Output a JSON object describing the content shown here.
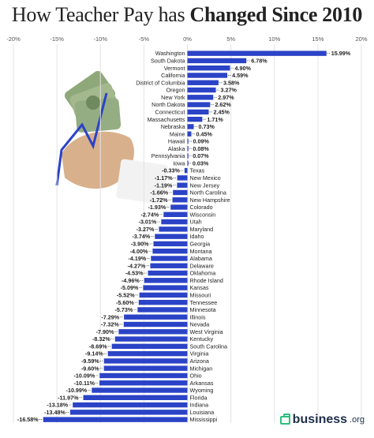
{
  "title_prefix": "How Teacher Pay has ",
  "title_bold": "Changed Since 2010",
  "logo": {
    "name": "business",
    "suffix": ".org",
    "accent": "#2dbf7e"
  },
  "colors": {
    "bar": "#2b43c6",
    "grid": "#e3e3e3",
    "text": "#222222"
  },
  "chart_data": {
    "type": "bar",
    "orientation": "horizontal",
    "title": "How Teacher Pay has Changed Since 2010",
    "xlim": [
      -20,
      20
    ],
    "xticks": [
      -20,
      -15,
      -10,
      -5,
      0,
      5,
      10,
      15,
      20
    ],
    "xtick_labels": [
      "-20%",
      "-15%",
      "-10%",
      "-5%",
      "0%",
      "5%",
      "10%",
      "15%",
      "20%"
    ],
    "categories": [
      "Washington",
      "South Dakota",
      "Vermont",
      "California",
      "District of Columbia",
      "Oregon",
      "New York",
      "North Dakota",
      "Connecticut",
      "Massachusetts",
      "Nebraska",
      "Maine",
      "Hawaii",
      "Alaska",
      "Pennsylvania",
      "Iowa",
      "Texas",
      "New Mexico",
      "New Jersey",
      "North Carolina",
      "New Hampshire",
      "Colorado",
      "Wisconsin",
      "Utah",
      "Maryland",
      "Idaho",
      "Georgia",
      "Montana",
      "Alabama",
      "Delaware",
      "Oklahoma",
      "Rhode Island",
      "Kansas",
      "Missouri",
      "Tennessee",
      "Minnesota",
      "Illinois",
      "Nevada",
      "West Virginia",
      "Kentucky",
      "South Carolina",
      "Virginia",
      "Arizona",
      "Michigan",
      "Ohio",
      "Arkansas",
      "Wyoming",
      "Florida",
      "Indiana",
      "Louisiana",
      "Mississippi"
    ],
    "values": [
      15.99,
      6.78,
      4.9,
      4.59,
      3.58,
      3.27,
      2.97,
      2.62,
      2.45,
      1.71,
      0.73,
      0.45,
      0.09,
      0.08,
      0.07,
      0.03,
      -0.33,
      -1.17,
      -1.19,
      -1.66,
      -1.72,
      -1.93,
      -2.74,
      -3.01,
      -3.27,
      -3.74,
      -3.9,
      -4.0,
      -4.19,
      -4.27,
      -4.53,
      -4.96,
      -5.09,
      -5.52,
      -5.6,
      -5.73,
      -7.29,
      -7.32,
      -7.9,
      -8.32,
      -8.69,
      -9.14,
      -9.59,
      -9.6,
      -10.09,
      -10.11,
      -10.99,
      -11.97,
      -13.18,
      -13.48,
      -16.58
    ],
    "value_labels": [
      "15.99%",
      "6.78%",
      "4.90%",
      "4.59%",
      "3.58%",
      "3.27%",
      "2.97%",
      "2.62%",
      "2.45%",
      "1.71%",
      "0.73%",
      "0.45%",
      "0.09%",
      "0.08%",
      "0.07%",
      "0.03%",
      "-0.33%",
      "-1.17%",
      "-1.19%",
      "-1.66%",
      "-1.72%",
      "-1.93%",
      "-2.74%",
      "-3.01%",
      "-3.27%",
      "-3.74%",
      "-3.90%",
      "-4.00%",
      "-4.19%",
      "-4.27%",
      "-4.53%",
      "-4.96%",
      "-5.09%",
      "-5.52%",
      "-5.60%",
      "-5.73%",
      "-7.29%",
      "-7.32%",
      "-7.90%",
      "-8.32%",
      "-8.69%",
      "-9.14%",
      "-9.59%",
      "-9.60%",
      "-10.09%",
      "-10.11%",
      "-10.99%",
      "-11.97%",
      "-13.18%",
      "-13.48%",
      "-16.58%"
    ],
    "grid": true,
    "legend": "none"
  }
}
